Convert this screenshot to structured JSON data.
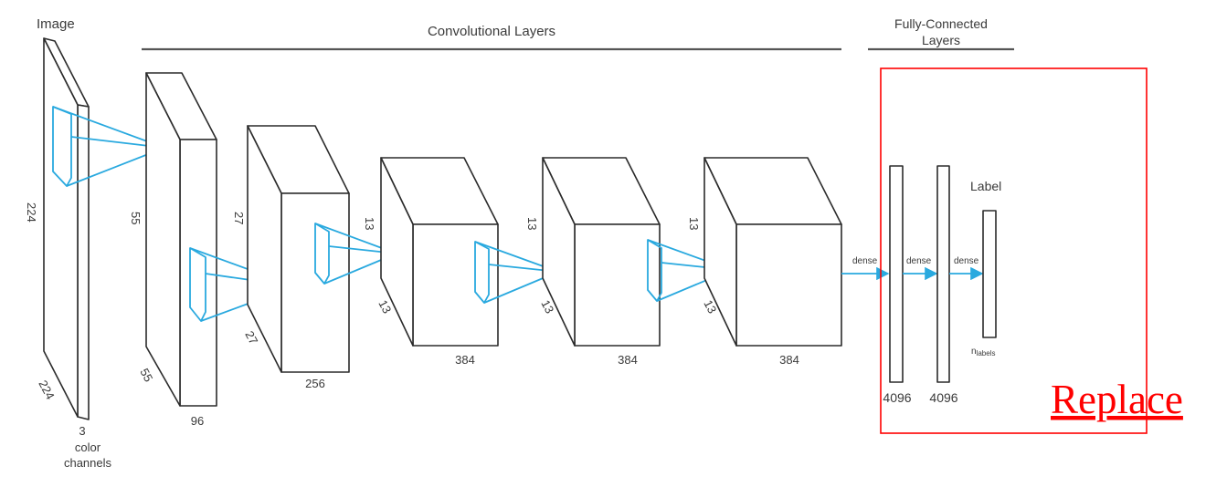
{
  "header": {
    "image": "Image",
    "conv": "Convolutional Layers",
    "fc_line1": "Fully-Connected",
    "fc_line2": "Layers"
  },
  "input": {
    "height": "224",
    "width": "224",
    "depth": "3",
    "depth_caption_1": "color",
    "depth_caption_2": "channels"
  },
  "conv1": {
    "height": "55",
    "width": "55",
    "depth": "96"
  },
  "conv2": {
    "height": "27",
    "width": "27",
    "depth": "256"
  },
  "conv3": {
    "height": "13",
    "width": "13",
    "depth": "384"
  },
  "conv4": {
    "height": "13",
    "width": "13",
    "depth": "384"
  },
  "conv5": {
    "height": "13",
    "width": "13",
    "depth": "384"
  },
  "fc": {
    "dense1": "dense",
    "dense2": "dense",
    "dense3": "dense",
    "fc1_size": "4096",
    "fc2_size": "4096",
    "label_title": "Label",
    "label_size": "n",
    "label_size_sub": "labels"
  },
  "overlay": {
    "text": "Replace",
    "color": "#ff0000"
  },
  "colors": {
    "kernel": "#29a9df",
    "outline": "#2b2b2b"
  }
}
